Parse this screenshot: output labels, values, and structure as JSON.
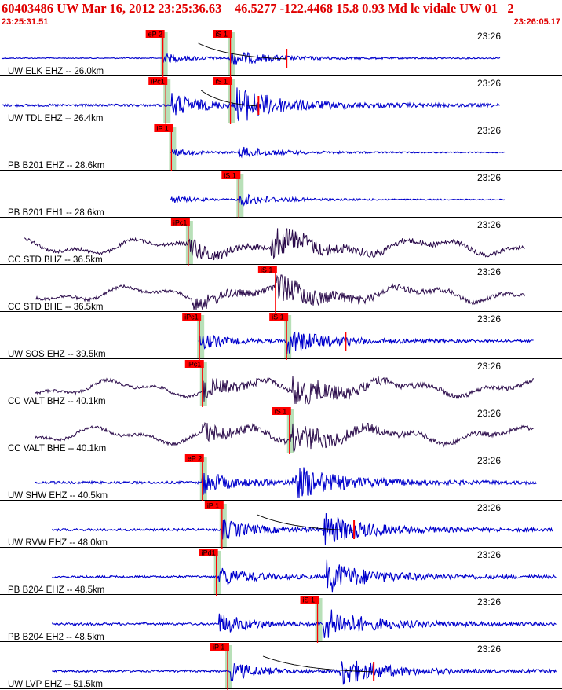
{
  "header": {
    "title": "60403486 UW Mar 16, 2012 23:25:36.63    46.5277 -122.4468 15.8 0.93 Md le vidale UW 01   2",
    "time_start": "23:25:31.51",
    "time_end": "23:26:05.17",
    "color": "#e00000"
  },
  "chart_data": {
    "type": "line",
    "title": "60403486 UW Mar 16, 2012 23:25:36.63    46.5277 -122.4468 15.8 0.93 Md le vidale UW 01   2",
    "x_range": [
      "23:25:31.51",
      "23:26:05.17"
    ],
    "tick_label": "23:26",
    "colors": {
      "blue_trace": "#0000cc",
      "dark_trace": "#2a0a4a",
      "pick": "#ff0000",
      "window": "#b8e0b8"
    },
    "traces": [
      {
        "label": "UW ELK EHZ -- 26.0km",
        "color": "#0000cc",
        "amp": 0.4,
        "noise_start": 0.0,
        "p_onset": 0.29,
        "s_onset": 0.41,
        "end": 0.89,
        "picks": [
          {
            "label": "eP 2",
            "at": 0.29,
            "window": true
          },
          {
            "label": "iS 1",
            "at": 0.41,
            "window": true
          }
        ],
        "coda_marker": 0.51,
        "decay_curve": true
      },
      {
        "label": "UW TDL EHZ -- 26.4km",
        "color": "#0000cc",
        "amp": 1.0,
        "noise_start": 0.0,
        "p_onset": 0.305,
        "s_onset": 0.42,
        "end": 0.89,
        "picks": [
          {
            "label": "iPc1",
            "at": 0.295,
            "window": true
          },
          {
            "label": "iS 1",
            "at": 0.41,
            "window": true
          }
        ],
        "coda_marker": 0.46,
        "decay_curve": true
      },
      {
        "label": "PB B201 EHZ -- 28.6km",
        "color": "#0000cc",
        "amp": 0.3,
        "noise_start": 0.3,
        "p_onset": 0.305,
        "s_onset": 0.425,
        "end": 0.9,
        "picks": [
          {
            "label": "iP 1",
            "at": 0.305,
            "window": true
          }
        ],
        "coda_marker": null,
        "decay_curve": false
      },
      {
        "label": "PB B201 EH1 -- 28.6km",
        "color": "#0000cc",
        "amp": 0.3,
        "noise_start": 0.3,
        "p_onset": 0.305,
        "s_onset": 0.425,
        "end": 0.9,
        "picks": [
          {
            "label": "iS 1",
            "at": 0.425,
            "window": true
          }
        ],
        "coda_marker": null,
        "decay_curve": false
      },
      {
        "label": "CC STD BHZ -- 36.5km",
        "color": "#2a0a4a",
        "amp": 0.9,
        "noise_start": 0.04,
        "p_onset": 0.335,
        "s_onset": 0.48,
        "end": 0.935,
        "picks": [
          {
            "label": "iPc1",
            "at": 0.335,
            "window": true
          }
        ],
        "coda_marker": null,
        "decay_curve": false
      },
      {
        "label": "CC STD BHE -- 36.5km",
        "color": "#2a0a4a",
        "amp": 0.9,
        "noise_start": 0.06,
        "p_onset": 0.34,
        "s_onset": 0.49,
        "end": 0.935,
        "picks": [
          {
            "label": "iS 1",
            "at": 0.49,
            "window": false
          }
        ],
        "coda_marker": null,
        "decay_curve": false
      },
      {
        "label": "UW SOS EHZ -- 39.5km",
        "color": "#0000cc",
        "amp": 0.7,
        "noise_start": 0.35,
        "p_onset": 0.355,
        "s_onset": 0.51,
        "end": 0.95,
        "picks": [
          {
            "label": "iPc1",
            "at": 0.355,
            "window": true
          },
          {
            "label": "iS 1",
            "at": 0.51,
            "window": true
          }
        ],
        "coda_marker": 0.615,
        "decay_curve": false
      },
      {
        "label": "CC VALT BHZ -- 40.1km",
        "color": "#2a0a4a",
        "amp": 0.9,
        "noise_start": 0.06,
        "p_onset": 0.36,
        "s_onset": 0.52,
        "end": 0.95,
        "picks": [
          {
            "label": "iPc1",
            "at": 0.36,
            "window": true
          }
        ],
        "coda_marker": null,
        "decay_curve": false
      },
      {
        "label": "CC VALT BHE -- 40.1km",
        "color": "#2a0a4a",
        "amp": 0.9,
        "noise_start": 0.06,
        "p_onset": 0.36,
        "s_onset": 0.515,
        "end": 0.95,
        "picks": [
          {
            "label": "iS 1",
            "at": 0.515,
            "window": true
          }
        ],
        "coda_marker": null,
        "decay_curve": false
      },
      {
        "label": "UW SHW EHZ -- 40.5km",
        "color": "#0000cc",
        "amp": 1.0,
        "noise_start": 0.06,
        "p_onset": 0.36,
        "s_onset": 0.52,
        "end": 0.955,
        "picks": [
          {
            "label": "eP 2",
            "at": 0.36,
            "window": true
          }
        ],
        "coda_marker": null,
        "decay_curve": false
      },
      {
        "label": "UW RVW EHZ -- 48.0km",
        "color": "#0000cc",
        "amp": 0.9,
        "noise_start": 0.09,
        "p_onset": 0.395,
        "s_onset": 0.575,
        "end": 0.985,
        "picks": [
          {
            "label": "iP 1",
            "at": 0.395,
            "window": true
          }
        ],
        "coda_marker": 0.63,
        "decay_curve": true
      },
      {
        "label": "PB B204 EHZ -- 48.5km",
        "color": "#0000cc",
        "amp": 0.9,
        "noise_start": 0.09,
        "p_onset": 0.39,
        "s_onset": 0.58,
        "end": 0.99,
        "picks": [
          {
            "label": "iPd1",
            "at": 0.385,
            "window": true
          }
        ],
        "coda_marker": null,
        "decay_curve": false
      },
      {
        "label": "PB B204 EH2 -- 48.5km",
        "color": "#0000cc",
        "amp": 0.9,
        "noise_start": 0.09,
        "p_onset": 0.39,
        "s_onset": 0.575,
        "end": 0.99,
        "picks": [
          {
            "label": "iS 1",
            "at": 0.565,
            "window": true
          }
        ],
        "coda_marker": null,
        "decay_curve": false
      },
      {
        "label": "UW LVP EHZ -- 51.5km",
        "color": "#0000cc",
        "amp": 0.8,
        "noise_start": 0.09,
        "p_onset": 0.41,
        "s_onset": 0.605,
        "end": 0.99,
        "picks": [
          {
            "label": "iP 1",
            "at": 0.405,
            "window": true
          }
        ],
        "coda_marker": 0.665,
        "decay_curve": true
      }
    ]
  }
}
